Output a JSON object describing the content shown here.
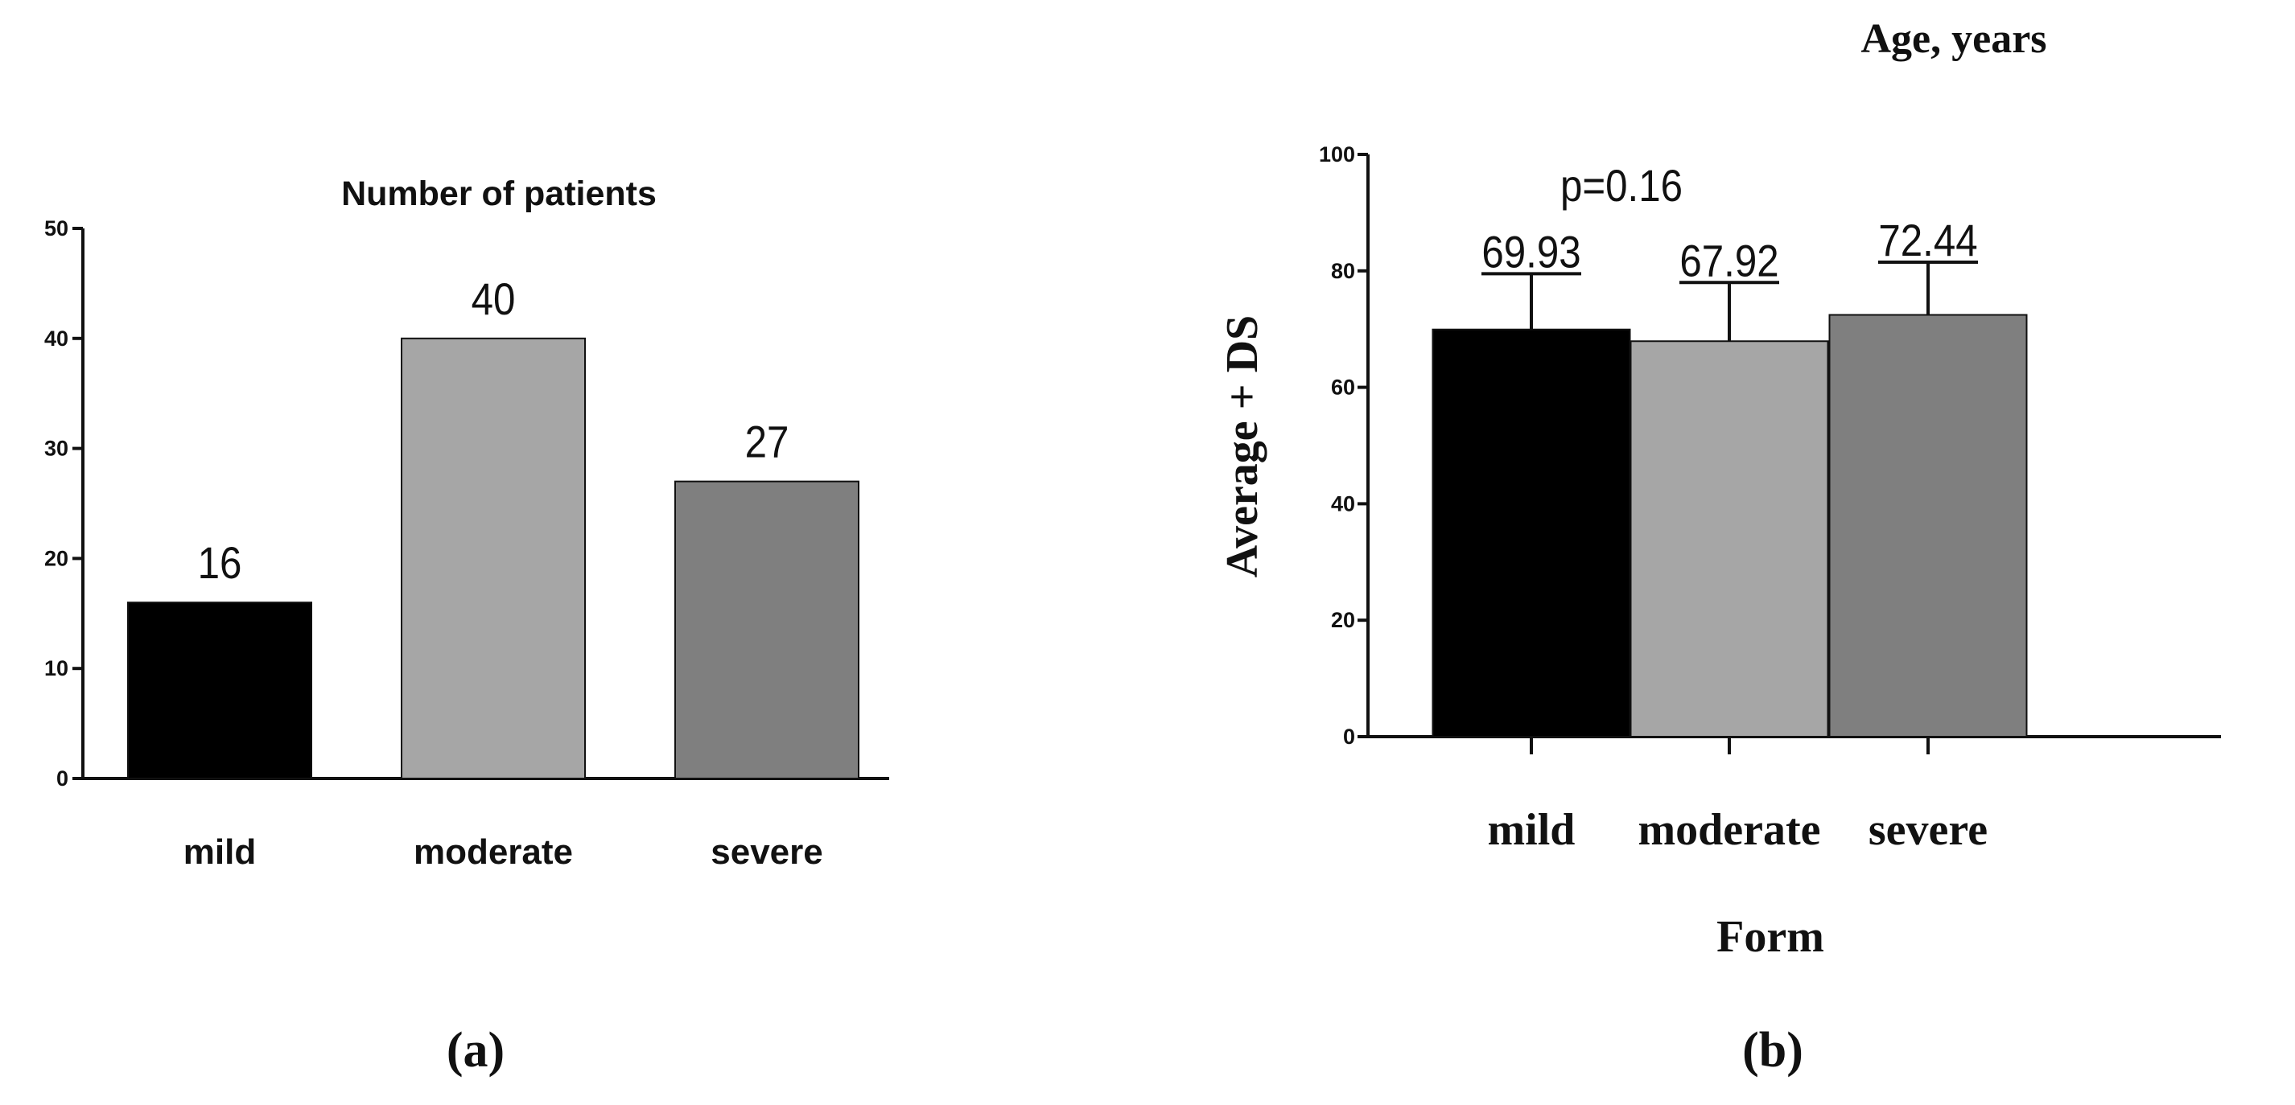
{
  "chart_data": [
    {
      "panel_label": "(a)",
      "type": "bar",
      "title": "Number of patients",
      "xlabel": "",
      "ylabel": "",
      "categories": [
        "mild",
        "moderate",
        "severe"
      ],
      "values": [
        16,
        40,
        27
      ],
      "data_labels": [
        "16",
        "40",
        "27"
      ],
      "ylim": [
        0,
        50
      ],
      "yticks": [
        0,
        10,
        20,
        30,
        40,
        50
      ],
      "colors": [
        "#000000",
        "#a6a6a6",
        "#7f7f7f"
      ],
      "grid": false,
      "legend": "none"
    },
    {
      "panel_label": "(b)",
      "type": "bar",
      "title": "Age, years",
      "xlabel": "Form",
      "ylabel": "Average + DS",
      "categories": [
        "mild",
        "moderate",
        "severe"
      ],
      "values": [
        69.93,
        67.92,
        72.44
      ],
      "data_labels": [
        "69.93",
        "67.92",
        "72.44"
      ],
      "error_upper": [
        79.5,
        78,
        81.5
      ],
      "annotation": "p=0.16",
      "ylim": [
        0,
        100
      ],
      "yticks": [
        0,
        20,
        40,
        60,
        80,
        100
      ],
      "colors": [
        "#000000",
        "#a6a6a6",
        "#7f7f7f"
      ],
      "grid": false,
      "legend": "none"
    }
  ]
}
